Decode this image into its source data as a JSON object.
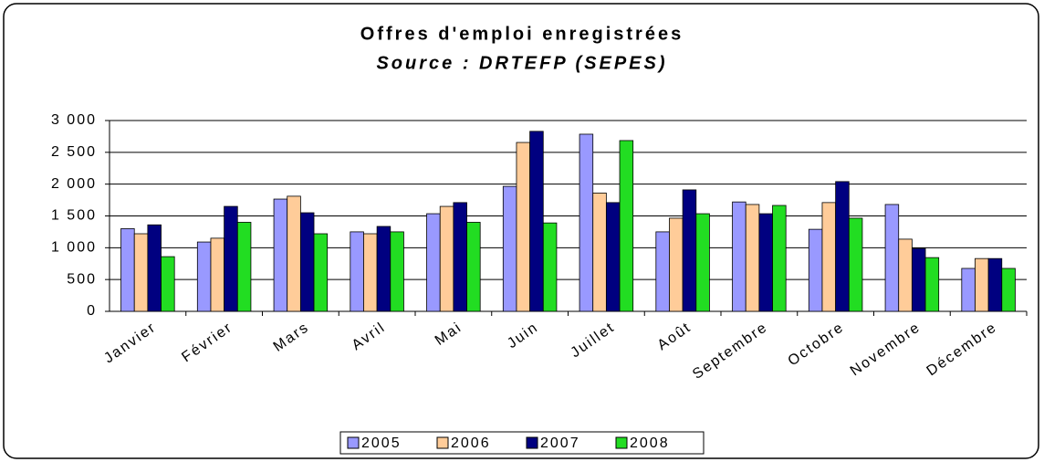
{
  "chart_data": {
    "type": "bar",
    "title": "Offres d'emploi enregistrées",
    "subtitle": "Source : DRTEFP (SEPES)",
    "categories": [
      "Janvier",
      "Février",
      "Mars",
      "Avril",
      "Mai",
      "Juin",
      "Juillet",
      "Août",
      "Septembre",
      "Octobre",
      "Novembre",
      "Décembre"
    ],
    "series": [
      {
        "name": "2005",
        "color": "#9999ff",
        "values": [
          1300,
          1090,
          1765,
          1250,
          1535,
          1965,
          2785,
          1250,
          1720,
          1290,
          1680,
          675
        ]
      },
      {
        "name": "2006",
        "color": "#ffcc99",
        "values": [
          1220,
          1150,
          1810,
          1220,
          1650,
          2655,
          1860,
          1465,
          1680,
          1710,
          1135,
          830
        ]
      },
      {
        "name": "2007",
        "color": "#000080",
        "values": [
          1360,
          1650,
          1550,
          1335,
          1710,
          2830,
          1710,
          1910,
          1535,
          2040,
          990,
          830
        ]
      },
      {
        "name": "2008",
        "color": "#22dd22",
        "values": [
          860,
          1400,
          1220,
          1250,
          1400,
          1390,
          2685,
          1535,
          1665,
          1465,
          845,
          675
        ]
      }
    ],
    "ylim": [
      0,
      3000
    ],
    "yticks": [
      0,
      500,
      {
        "value": 1000,
        "label": "1 000"
      },
      {
        "value": 1500,
        "label": "1 500"
      },
      {
        "value": 2000,
        "label": "2 000"
      },
      {
        "value": 2500,
        "label": "2 500"
      },
      {
        "value": 3000,
        "label": "3 000"
      }
    ],
    "grid": true,
    "legend": "bottom"
  }
}
